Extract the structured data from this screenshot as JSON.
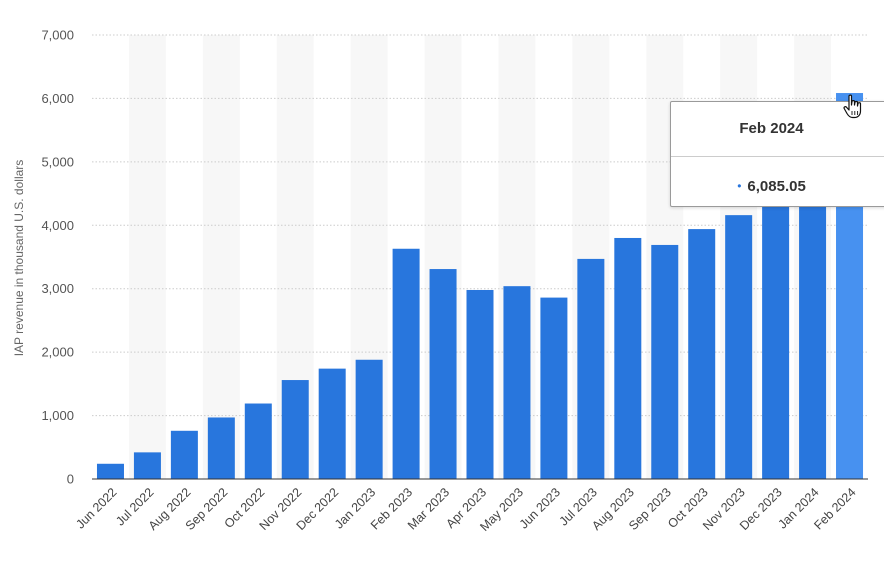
{
  "chart_data": {
    "type": "bar",
    "ylabel": "IAP revenue in thousand U.S. dollars",
    "xlabel": "",
    "ylim": [
      0,
      7000
    ],
    "yticks": [
      0,
      1000,
      2000,
      3000,
      4000,
      5000,
      6000,
      7000
    ],
    "ytick_labels": [
      "0",
      "1,000",
      "2,000",
      "3,000",
      "4,000",
      "5,000",
      "6,000",
      "7,000"
    ],
    "grid": true,
    "categories": [
      "Jun 2022",
      "Jul 2022",
      "Aug 2022",
      "Sep 2022",
      "Oct 2022",
      "Nov 2022",
      "Dec 2022",
      "Jan 2023",
      "Feb 2023",
      "Mar 2023",
      "Apr 2023",
      "May 2023",
      "Jun 2023",
      "Jul 2023",
      "Aug 2023",
      "Sep 2023",
      "Oct 2023",
      "Nov 2023",
      "Dec 2023",
      "Jan 2024",
      "Feb 2024"
    ],
    "values": [
      240,
      420,
      760,
      970,
      1190,
      1560,
      1740,
      1880,
      3630,
      3310,
      2980,
      3040,
      2860,
      3470,
      3800,
      3690,
      3940,
      4160,
      4290,
      4330,
      6085.05
    ],
    "colors": {
      "bar": "#2876dd",
      "highlight": "#4791f0",
      "grid": "#cccccc",
      "band": "#f7f7f7"
    },
    "highlight_index": 20
  },
  "tooltip": {
    "title": "Feb 2024",
    "value": "6,085.05",
    "dot": "•"
  },
  "cursor": {
    "icon": "hand-pointer-icon"
  }
}
